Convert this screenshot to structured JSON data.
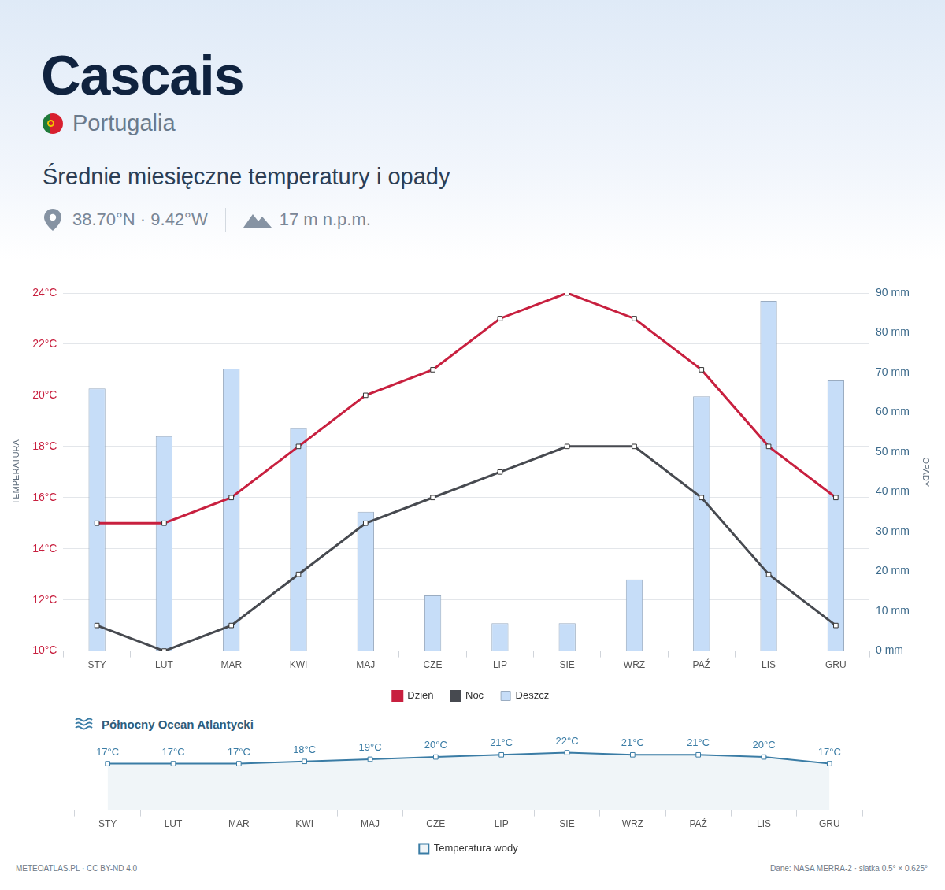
{
  "header": {
    "title": "Cascais",
    "country": "Portugalia",
    "subtitle": "Średnie miesięczne temperatury i opady",
    "coordinates": "38.70°N · 9.42°W",
    "elevation": "17 m n.p.m."
  },
  "chart_data": [
    {
      "type": "bar",
      "categories": [
        "STY",
        "LUT",
        "MAR",
        "KWI",
        "MAJ",
        "CZE",
        "LIP",
        "SIE",
        "WRZ",
        "PAŹ",
        "LIS",
        "GRU"
      ],
      "series": [
        {
          "name": "Dzień",
          "type": "line",
          "color": "#c8203f",
          "marker": "square",
          "axis": "y",
          "values": [
            15,
            15,
            16,
            18,
            20,
            21,
            23,
            24,
            23,
            21,
            18,
            16
          ]
        },
        {
          "name": "Noc",
          "type": "line",
          "color": "#474a50",
          "marker": "square",
          "axis": "y",
          "values": [
            11,
            10,
            11,
            13,
            15,
            16,
            17,
            18,
            18,
            16,
            13,
            11
          ]
        },
        {
          "name": "Deszcz",
          "type": "bar",
          "color": "#c6ddf8",
          "axis": "y2",
          "values": [
            66,
            54,
            71,
            56,
            35,
            14,
            7,
            7,
            18,
            64,
            88,
            68
          ]
        }
      ],
      "y_label": "TEMPERATURA",
      "y2_label": "OPADY",
      "ylim": [
        10,
        24
      ],
      "yticks": [
        {
          "value": 10,
          "label": "10°C"
        },
        {
          "value": 12,
          "label": "12°C"
        },
        {
          "value": 14,
          "label": "14°C"
        },
        {
          "value": 16,
          "label": "16°C"
        },
        {
          "value": 18,
          "label": "18°C"
        },
        {
          "value": 20,
          "label": "20°C"
        },
        {
          "value": 22,
          "label": "22°C"
        },
        {
          "value": 24,
          "label": "24°C"
        }
      ],
      "y2lim": [
        0,
        90
      ],
      "y2ticks": [
        {
          "value": 0,
          "label": "0 mm"
        },
        {
          "value": 10,
          "label": "10 mm"
        },
        {
          "value": 20,
          "label": "20 mm"
        },
        {
          "value": 30,
          "label": "30 mm"
        },
        {
          "value": 40,
          "label": "40 mm"
        },
        {
          "value": 50,
          "label": "50 mm"
        },
        {
          "value": 60,
          "label": "60 mm"
        },
        {
          "value": 70,
          "label": "70 mm"
        },
        {
          "value": 80,
          "label": "80 mm"
        },
        {
          "value": 90,
          "label": "90 mm"
        }
      ],
      "grid": true,
      "legend": "bottom"
    },
    {
      "type": "line",
      "title": "Północny Ocean Atlantycki",
      "categories": [
        "STY",
        "LUT",
        "MAR",
        "KWI",
        "MAJ",
        "CZE",
        "LIP",
        "SIE",
        "WRZ",
        "PAŹ",
        "LIS",
        "GRU"
      ],
      "series": [
        {
          "name": "Temperatura wody",
          "color": "#3a7ca5",
          "marker": "square",
          "values": [
            17,
            17,
            17,
            18,
            19,
            20,
            21,
            22,
            21,
            21,
            20,
            17
          ],
          "value_labels": [
            "17°C",
            "17°C",
            "17°C",
            "18°C",
            "19°C",
            "20°C",
            "21°C",
            "22°C",
            "21°C",
            "21°C",
            "20°C",
            "17°C"
          ]
        }
      ],
      "ylim": [
        -4,
        30
      ],
      "data_labels": true,
      "tick_labels": "x",
      "grid": false,
      "legend": "bottom"
    }
  ],
  "footer": {
    "left": "METEOATLAS.PL · CC BY-ND 4.0",
    "right": "Dane: NASA MERRA-2 · siatka 0.5° × 0.625°"
  }
}
